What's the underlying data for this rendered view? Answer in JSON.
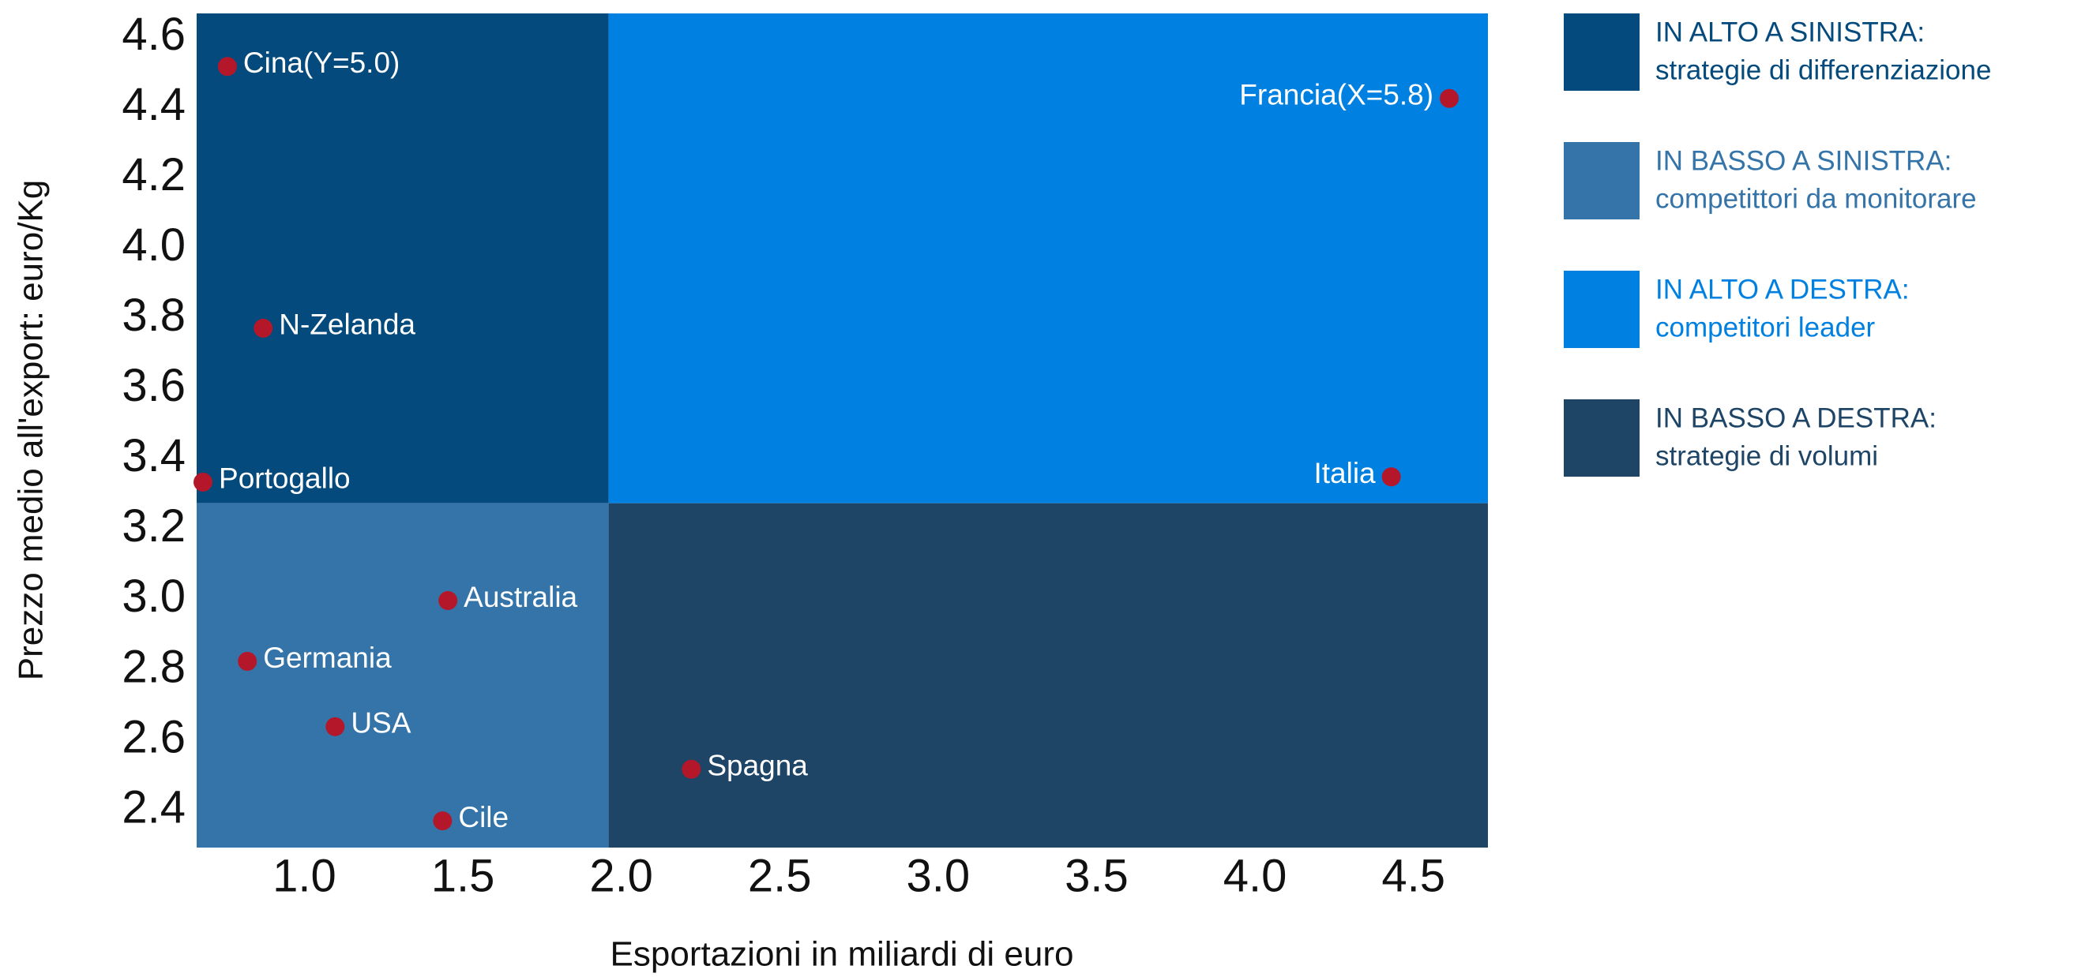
{
  "chart_data": {
    "type": "scatter",
    "xlabel": "Esportazioni in miliardi di euro",
    "ylabel": "Prezzo medio all'export: euro/Kg",
    "xlim": [
      0.66,
      4.735
    ],
    "ylim": [
      2.29,
      4.664
    ],
    "xticks": [
      {
        "value": 1.0,
        "label": "1.0"
      },
      1.5,
      {
        "value": 2.0,
        "label": "2.0"
      },
      2.5,
      {
        "value": 3.0,
        "label": "3.0"
      },
      3.5,
      {
        "value": 4.0,
        "label": "4.0"
      },
      4.5
    ],
    "yticks": [
      2.4,
      2.6,
      2.8,
      {
        "value": 3.0,
        "label": "3.0"
      },
      3.2,
      3.4,
      3.6,
      3.8,
      {
        "value": 4.0,
        "label": "4.0"
      },
      4.2,
      4.4,
      4.6
    ],
    "x_split": 1.96,
    "y_split": 3.27,
    "regions": [
      {
        "name": "IN ALTO A SINISTRA:",
        "description": "strategie di differenziazione",
        "color": "#054a7c"
      },
      {
        "name": "IN BASSO A SINISTRA:",
        "description": "competittori da monitorare",
        "color": "#3474a8"
      },
      {
        "name": "IN ALTO A DESTRA:",
        "description": "competitori leader",
        "color": "#0080e0"
      },
      {
        "name": "IN BASSO A DESTRA:",
        "description": "strategie di volumi",
        "color": "#1e4466"
      }
    ],
    "point_color": "#b5172a",
    "labels": [
      "Cina(Y=5.0)",
      "Francia(X=5.8)",
      "N-Zelanda",
      "Portogallo",
      "Italia",
      "Australia",
      "Germania",
      "USA",
      "Spagna",
      "Cile"
    ],
    "x": [
      0.757,
      4.613,
      0.87,
      0.68,
      4.43,
      1.453,
      0.82,
      1.097,
      2.221,
      1.436
    ],
    "values": [
      4.513,
      4.422,
      3.768,
      3.33,
      3.345,
      2.993,
      2.82,
      2.634,
      2.513,
      2.366
    ]
  }
}
